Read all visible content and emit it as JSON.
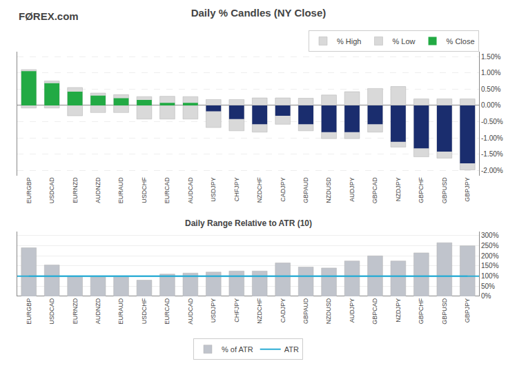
{
  "chart_data": [
    {
      "type": "bar",
      "title": "Daily % Candles (NY Close)",
      "annotations": [
        "FØREX.com"
      ],
      "categories": [
        "EURGBP",
        "USDCAD",
        "EURNZD",
        "AUDNZD",
        "EURAUD",
        "USDCHF",
        "EURCAD",
        "AUDCAD",
        "USDJPY",
        "CHFJPY",
        "NZDCHF",
        "CADJPY",
        "GBPAUD",
        "NZDUSD",
        "AUDJPY",
        "GBPCAD",
        "NZDJPY",
        "GBPCHF",
        "GBPUSD",
        "GBPJPY"
      ],
      "series": [
        {
          "name": "% High",
          "color": "#d9d9d9",
          "values": [
            1.1,
            0.75,
            0.55,
            0.38,
            0.33,
            0.27,
            0.28,
            0.27,
            0.18,
            0.18,
            0.23,
            0.23,
            0.22,
            0.32,
            0.42,
            0.52,
            0.58,
            0.2,
            0.2,
            0.2
          ]
        },
        {
          "name": "% Low",
          "color": "#d9d9d9",
          "values": [
            -0.08,
            -0.08,
            -0.32,
            -0.22,
            -0.22,
            -0.42,
            -0.42,
            -0.42,
            -0.68,
            -0.78,
            -0.82,
            -0.58,
            -0.78,
            -1.02,
            -1.02,
            -0.82,
            -1.28,
            -1.58,
            -1.62,
            -1.98
          ]
        },
        {
          "name": "% Close",
          "colors": [
            "#22aa44",
            "#22aa44",
            "#22aa44",
            "#22aa44",
            "#22aa44",
            "#22aa44",
            "#22aa44",
            "#22aa44",
            "#1a2d6e",
            "#1a2d6e",
            "#1a2d6e",
            "#1a2d6e",
            "#1a2d6e",
            "#1a2d6e",
            "#1a2d6e",
            "#1a2d6e",
            "#1a2d6e",
            "#1a2d6e",
            "#1a2d6e",
            "#1a2d6e"
          ],
          "values": [
            1.05,
            0.68,
            0.42,
            0.3,
            0.22,
            0.17,
            0.08,
            0.08,
            -0.18,
            -0.42,
            -0.58,
            -0.32,
            -0.58,
            -0.82,
            -0.82,
            -0.58,
            -1.12,
            -1.32,
            -1.42,
            -1.78
          ]
        }
      ],
      "ylim": [
        -2.15,
        1.65
      ],
      "yticks": [
        {
          "value": -2.0,
          "label": "-2.00%"
        },
        {
          "value": -1.5,
          "label": "-1.50%"
        },
        {
          "value": -1.0,
          "label": "-1.00%"
        },
        {
          "value": -0.5,
          "label": "-0.50%"
        },
        {
          "value": 0.0,
          "label": "0.00%"
        },
        {
          "value": 0.5,
          "label": "0.50%"
        },
        {
          "value": 1.0,
          "label": "1.00%"
        },
        {
          "value": 1.5,
          "label": "1.50%"
        }
      ],
      "grid": true,
      "legend": "upper right"
    },
    {
      "type": "bar",
      "title": "Daily Range Relative to ATR (10)",
      "categories": [
        "EURGBP",
        "USDCAD",
        "EURNZD",
        "AUDNZD",
        "EURAUD",
        "USDCHF",
        "EURCAD",
        "AUDCAD",
        "USDJPY",
        "CHFJPY",
        "NZDCHF",
        "CADJPY",
        "GBPAUD",
        "NZDUSD",
        "AUDJPY",
        "GBPCAD",
        "NZDJPY",
        "GBPCHF",
        "GBPUSD",
        "GBPJPY"
      ],
      "series": [
        {
          "name": "% of ATR",
          "color": "#c0c4cc",
          "values": [
            240,
            155,
            100,
            95,
            100,
            80,
            110,
            115,
            120,
            125,
            125,
            165,
            145,
            140,
            175,
            200,
            175,
            215,
            265,
            250
          ]
        }
      ],
      "reference_line": {
        "name": "ATR",
        "value": 100,
        "color": "#2bacd4"
      },
      "ylim": [
        0,
        320
      ],
      "yticks": [
        {
          "value": 0,
          "label": "0%"
        },
        {
          "value": 50,
          "label": "50%"
        },
        {
          "value": 100,
          "label": "100%"
        },
        {
          "value": 150,
          "label": "150%"
        },
        {
          "value": 200,
          "label": "200%"
        },
        {
          "value": 250,
          "label": "250%"
        },
        {
          "value": 300,
          "label": "300%"
        }
      ],
      "grid": true,
      "legend": "lower center"
    }
  ]
}
